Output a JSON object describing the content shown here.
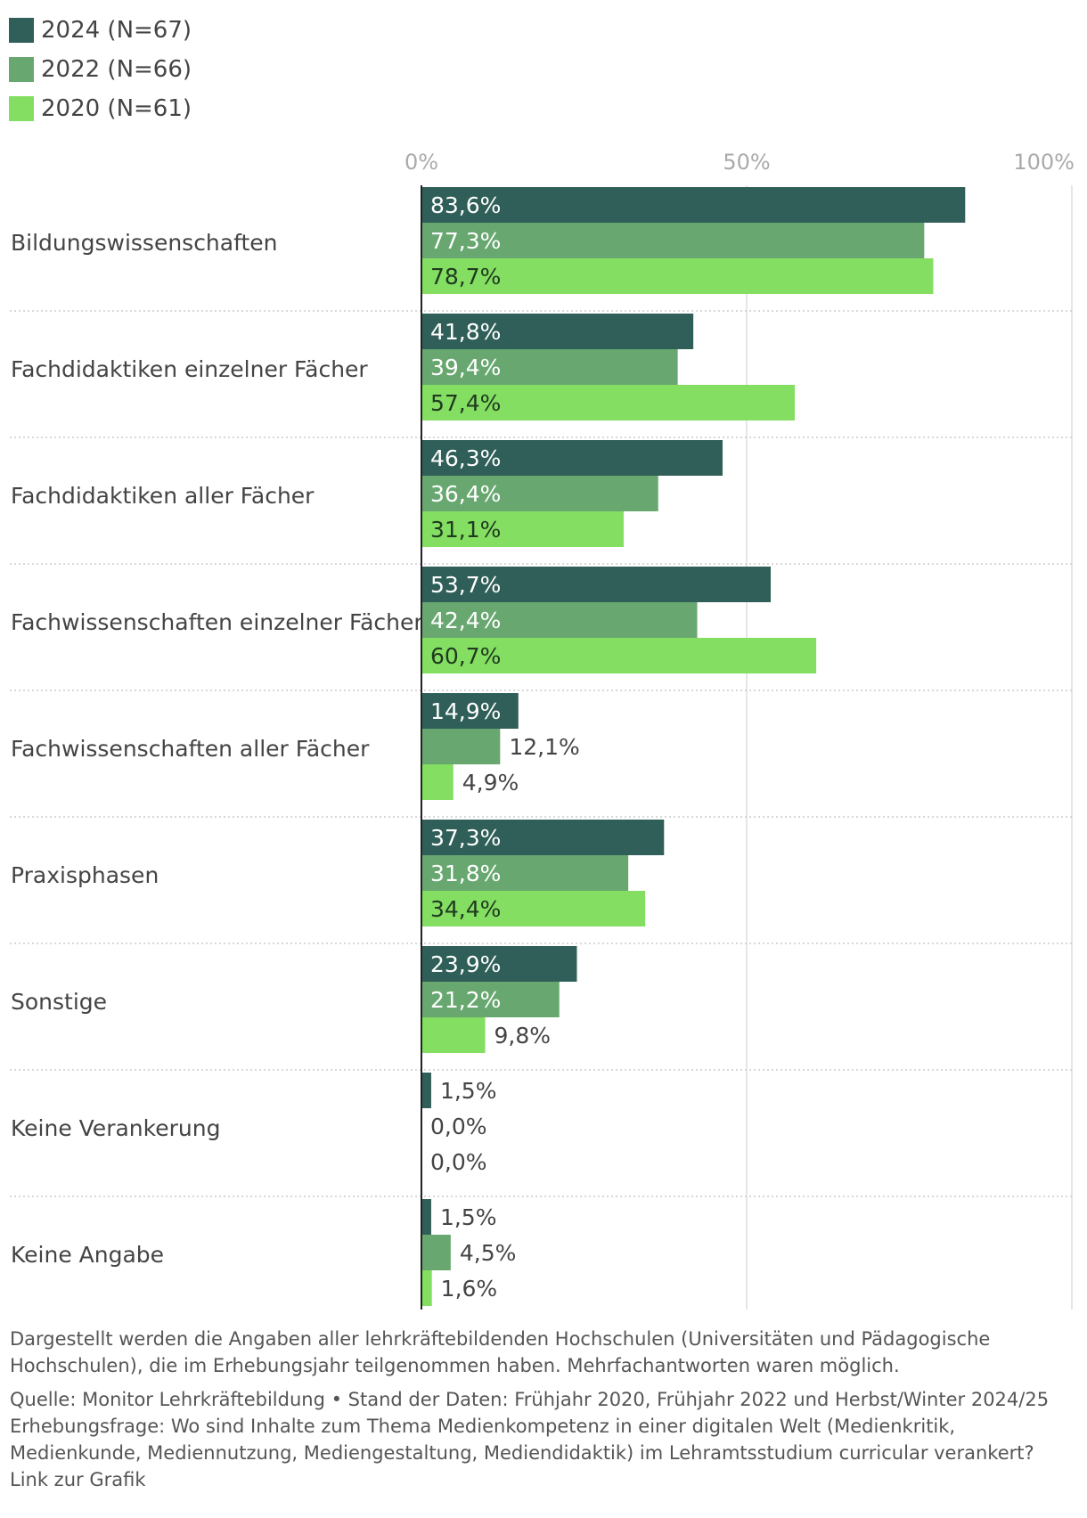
{
  "legend": [
    {
      "label": "2024 (N=67)",
      "color": "#2f5f58"
    },
    {
      "label": "2022 (N=66)",
      "color": "#68a870"
    },
    {
      "label": "2020 (N=61)",
      "color": "#84de62"
    }
  ],
  "chart_data": {
    "type": "bar",
    "orientation": "horizontal",
    "categories": [
      "Bildungswissenschaften",
      "Fachdidaktiken einzelner Fächer",
      "Fachdidaktiken aller Fächer",
      "Fachwissenschaften einzelner Fächer",
      "Fachwissenschaften aller Fächer",
      "Praxisphasen",
      "Sonstige",
      "Keine Verankerung",
      "Keine Angabe"
    ],
    "series": [
      {
        "name": "2024 (N=67)",
        "color": "#2f5f58",
        "values": [
          83.6,
          41.8,
          46.3,
          53.7,
          14.9,
          37.3,
          23.9,
          1.5,
          1.5
        ],
        "labels": [
          "83,6%",
          "41,8%",
          "46,3%",
          "53,7%",
          "14,9%",
          "37,3%",
          "23,9%",
          "1,5%",
          "1,5%"
        ]
      },
      {
        "name": "2022 (N=66)",
        "color": "#68a870",
        "values": [
          77.3,
          39.4,
          36.4,
          42.4,
          12.1,
          31.8,
          21.2,
          0.0,
          4.5
        ],
        "labels": [
          "77,3%",
          "39,4%",
          "36,4%",
          "42,4%",
          "12,1%",
          "31,8%",
          "21,2%",
          "0,0%",
          "4,5%"
        ]
      },
      {
        "name": "2020 (N=61)",
        "color": "#84de62",
        "values": [
          78.7,
          57.4,
          31.1,
          60.7,
          4.9,
          34.4,
          9.8,
          0.0,
          1.6
        ],
        "labels": [
          "78,7%",
          "57,4%",
          "31,1%",
          "60,7%",
          "4,9%",
          "34,4%",
          "9,8%",
          "0,0%",
          "1,6%"
        ]
      }
    ],
    "ticks": [
      0,
      50,
      100
    ],
    "tick_labels": [
      "0%",
      "50%",
      "100%"
    ],
    "xlim": [
      0,
      100
    ],
    "legend_position": "top-left"
  },
  "footer": {
    "note": "Dargestellt werden die Angaben aller lehrkräftebildenden Hochschulen (Universitäten und Pädagogische Hochschulen), die im Erhebungsjahr teilgenommen haben. Mehrfachantworten waren möglich.",
    "source": "Quelle: Monitor Lehrkräftebildung • Stand der Daten: Frühjahr 2020, Frühjahr 2022 und Herbst/Winter 2024/25",
    "question": "Erhebungsfrage: Wo sind Inhalte zum Thema Medienkompetenz in einer digitalen Welt (Medienkritik, Medienkunde, Mediennutzung, Mediengestaltung, Mediendidaktik) im Lehramtsstudium curricular verankert?",
    "link": "Link zur Grafik"
  }
}
